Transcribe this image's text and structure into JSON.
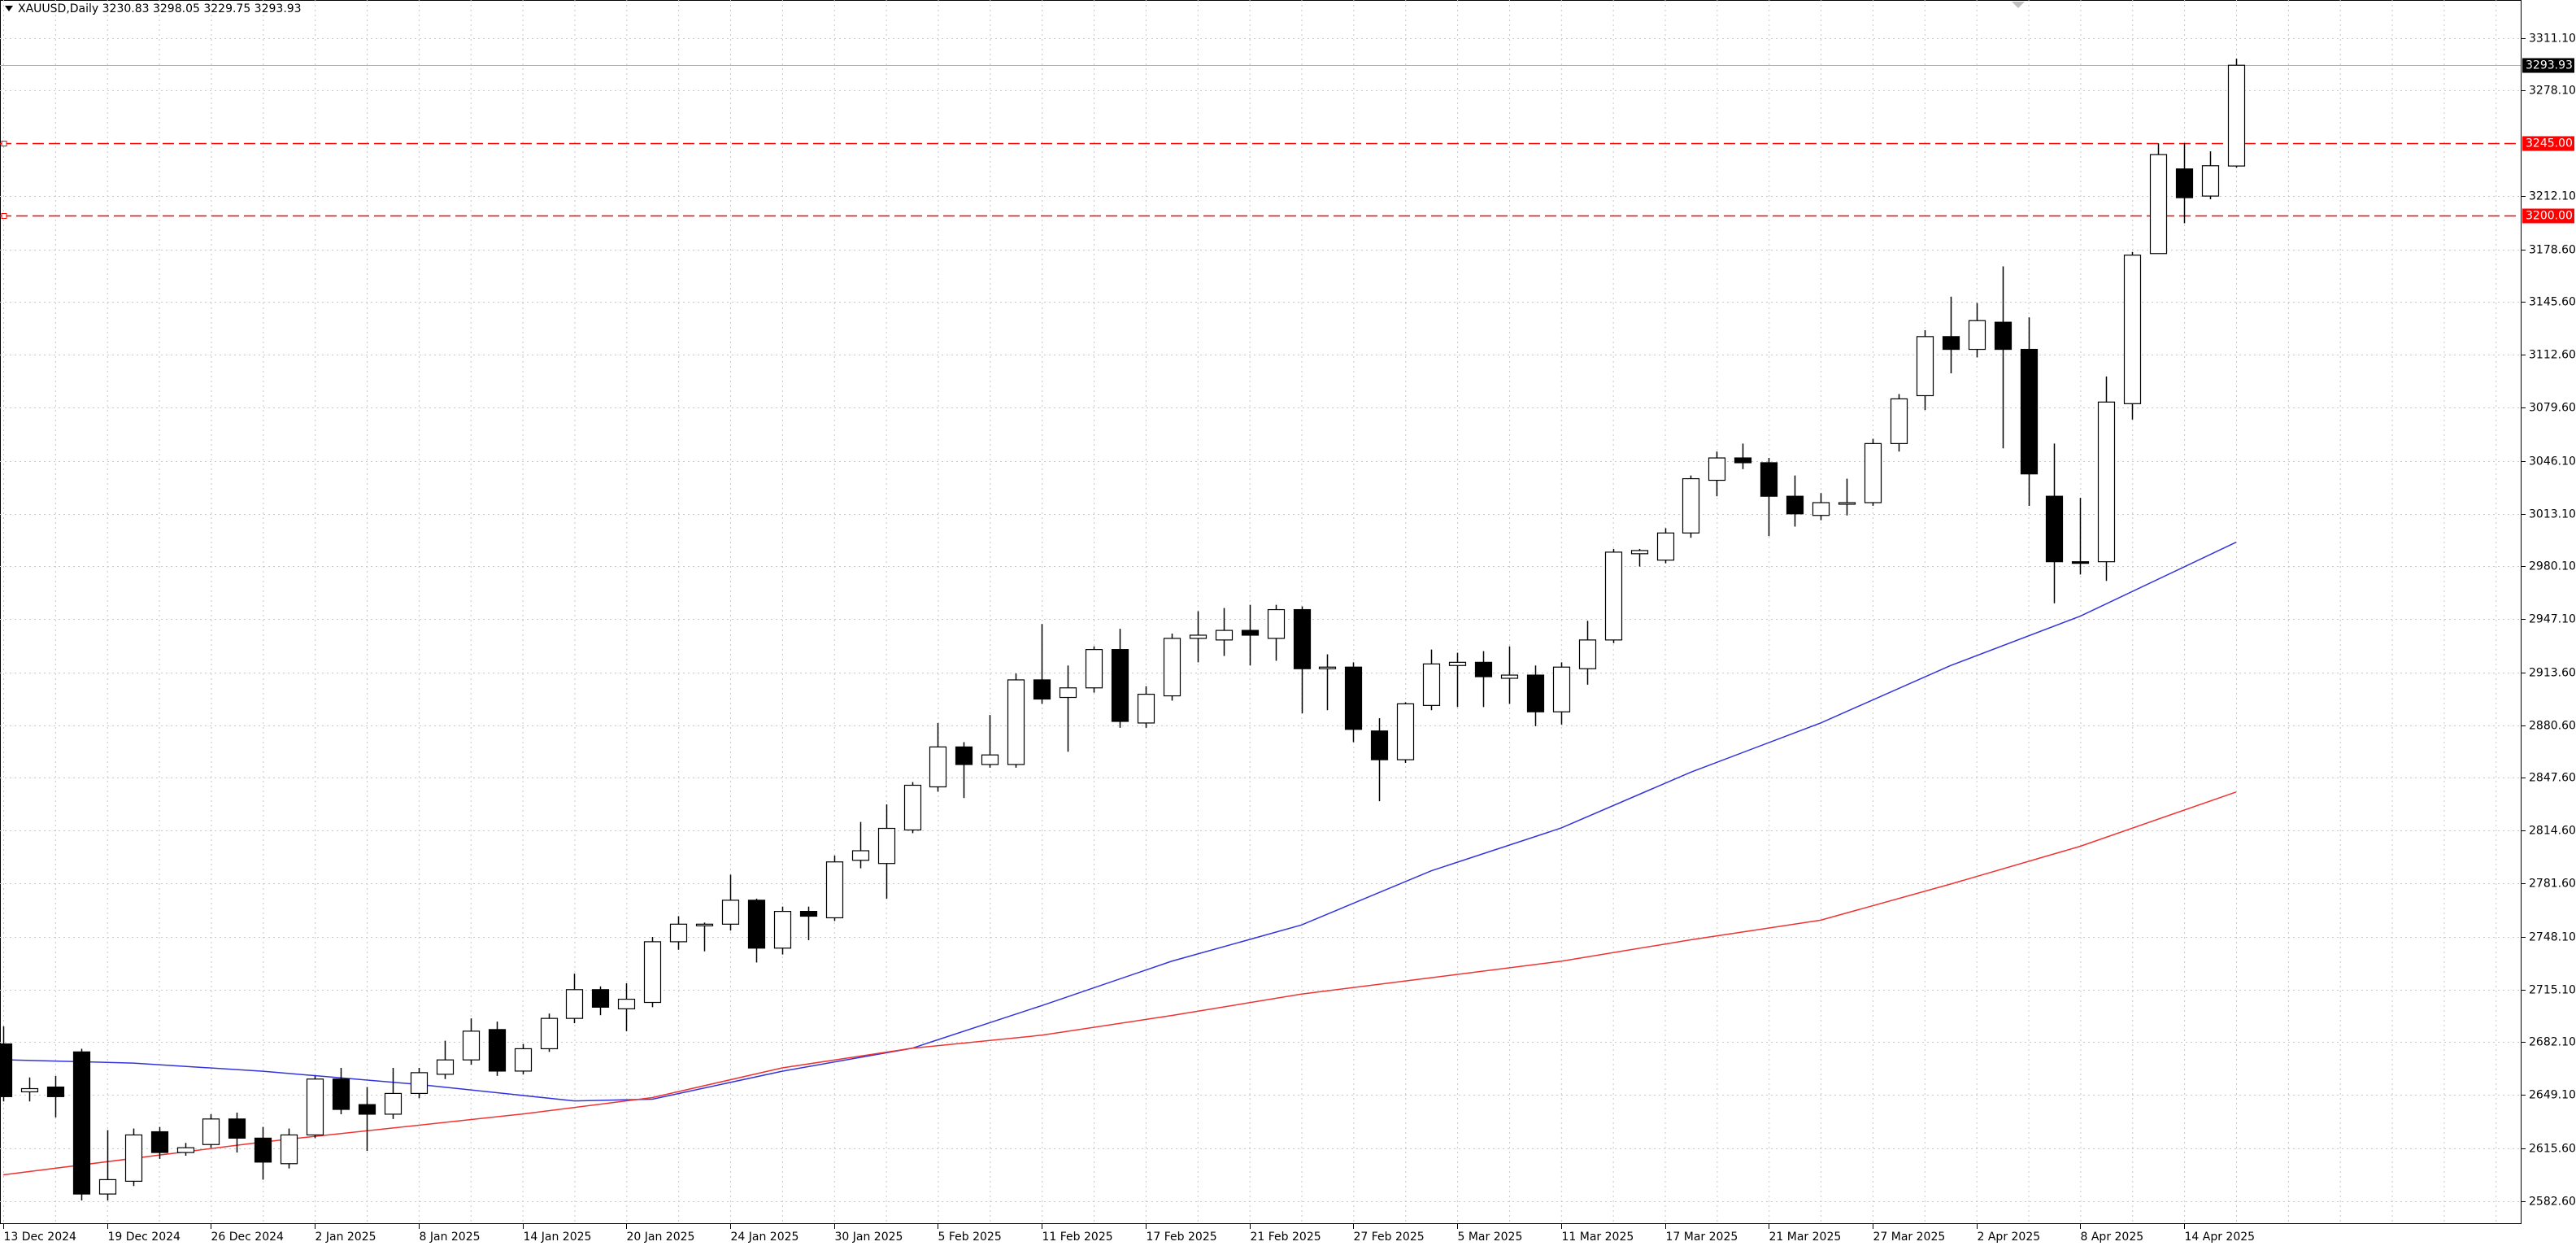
{
  "chart_data": {
    "type": "candlestick",
    "title": "XAUUSD,Daily  3230.83 3298.05 3229.75 3293.93",
    "categories": [
      "13 Dec 2024",
      null,
      null,
      null,
      "19 Dec 2024",
      null,
      null,
      null,
      "26 Dec 2024",
      null,
      null,
      null,
      "2 Jan 2025",
      null,
      null,
      null,
      "8 Jan 2025",
      null,
      null,
      null,
      "14 Jan 2025",
      null,
      null,
      null,
      "20 Jan 2025",
      null,
      null,
      null,
      "24 Jan 2025",
      null,
      null,
      null,
      "30 Jan 2025",
      null,
      null,
      null,
      "5 Feb 2025",
      null,
      null,
      null,
      "11 Feb 2025",
      null,
      null,
      null,
      "17 Feb 2025",
      null,
      null,
      null,
      "21 Feb 2025",
      null,
      null,
      null,
      "27 Feb 2025",
      null,
      null,
      null,
      "5 Mar 2025",
      null,
      null,
      null,
      "11 Mar 2025",
      null,
      null,
      null,
      "17 Mar 2025",
      null,
      null,
      null,
      "21 Mar 2025",
      null,
      null,
      null,
      "27 Mar 2025",
      null,
      null,
      null,
      "2 Apr 2025",
      null,
      null,
      null,
      "8 Apr 2025",
      null,
      null,
      null,
      "14 Apr 2025",
      null,
      null
    ],
    "open": [
      2681,
      2651,
      2654,
      2676,
      2587,
      2595,
      2626,
      2613,
      2618,
      2634,
      2622,
      2606,
      2624,
      2659,
      2643,
      2637,
      2650,
      2662,
      2671,
      2690,
      2664,
      2678,
      2697,
      2715,
      2703,
      2707,
      2745,
      2755,
      2756,
      2771,
      2741,
      2764,
      2760,
      2796,
      2794,
      2815,
      2842,
      2867,
      2856,
      2856,
      2909,
      2898,
      2904,
      2928,
      2882,
      2899,
      2935,
      2934,
      2940,
      2935,
      2953,
      2916,
      2917,
      2877,
      2859,
      2893,
      2918,
      2920,
      2910,
      2912,
      2889,
      2916,
      2934,
      2988,
      2984,
      3001,
      3034,
      3048,
      3045,
      3024,
      3012,
      3019,
      3020,
      3057,
      3087,
      3124,
      3116,
      3133,
      3116,
      3024,
      2983,
      2983,
      3082,
      3176,
      3229,
      3212,
      3230.83
    ],
    "high": [
      2692,
      2660,
      2661,
      2678,
      2627,
      2628,
      2629,
      2619,
      2637,
      2638,
      2629,
      2628,
      2661,
      2666,
      2654,
      2666,
      2666,
      2683,
      2697,
      2695,
      2681,
      2700,
      2725,
      2717,
      2719,
      2748,
      2761,
      2757,
      2787,
      2772,
      2767,
      2767,
      2799,
      2820,
      2831,
      2845,
      2882,
      2870,
      2887,
      2913,
      2944,
      2918,
      2930,
      2941,
      2905,
      2938,
      2952,
      2954,
      2956,
      2956,
      2955,
      2925,
      2920,
      2885,
      2895,
      2928,
      2926,
      2927,
      2930,
      2918,
      2920,
      2946,
      2991,
      2991,
      3004,
      3037,
      3052,
      3057,
      3048,
      3037,
      3026,
      3035,
      3060,
      3088,
      3128,
      3149,
      3145,
      3168,
      3136,
      3057,
      3023,
      3099,
      3177,
      3245,
      3245,
      3240,
      3298.05
    ],
    "low": [
      2645,
      2645,
      2635,
      2583,
      2583,
      2592,
      2609,
      2611,
      2616,
      2613,
      2596,
      2603,
      2622,
      2637,
      2614,
      2634,
      2647,
      2659,
      2668,
      2661,
      2662,
      2676,
      2694,
      2699,
      2689,
      2704,
      2740,
      2739,
      2752,
      2732,
      2737,
      2746,
      2758,
      2791,
      2772,
      2813,
      2839,
      2835,
      2854,
      2854,
      2894,
      2864,
      2901,
      2879,
      2879,
      2896,
      2920,
      2924,
      2918,
      2921,
      2888,
      2890,
      2870,
      2833,
      2857,
      2890,
      2892,
      2892,
      2894,
      2880,
      2881,
      2906,
      2932,
      2980,
      2982,
      2998,
      3024,
      3041,
      2999,
      3005,
      3009,
      3012,
      3018,
      3052,
      3078,
      3101,
      3111,
      3054,
      3018,
      2957,
      2975,
      2971,
      3072,
      3176,
      3195,
      3210,
      3229.75
    ],
    "close": [
      2648,
      2653,
      2648,
      2587,
      2596,
      2624,
      2613,
      2616,
      2634,
      2622,
      2607,
      2624,
      2659,
      2640,
      2637,
      2650,
      2663,
      2671,
      2689,
      2664,
      2678,
      2697,
      2715,
      2704,
      2709,
      2745,
      2756,
      2756,
      2771,
      2741,
      2764,
      2761,
      2795,
      2802,
      2816,
      2843,
      2867,
      2856,
      2862,
      2909,
      2897,
      2904,
      2928,
      2883,
      2900,
      2935,
      2937,
      2940,
      2937,
      2953,
      2916,
      2917,
      2878,
      2859,
      2894,
      2919,
      2920,
      2911,
      2912,
      2889,
      2917,
      2934,
      2989,
      2990,
      3001,
      3035,
      3048,
      3045,
      3024,
      3013,
      3020,
      3020,
      3057,
      3085,
      3124,
      3116,
      3134,
      3116,
      3038,
      2983,
      2982,
      3083,
      3175,
      3238,
      3211,
      3231,
      3293.93
    ],
    "lines": [
      {
        "color": "#3333dd",
        "x": [
          0,
          5,
          10,
          16,
          22,
          25,
          30,
          35,
          40,
          45,
          50,
          55,
          60,
          65,
          70,
          75,
          80,
          86
        ],
        "values": [
          2671.1,
          2669,
          2663.9,
          2655.6,
          2645.3,
          2646.4,
          2663.9,
          2678.3,
          2705,
          2732.8,
          2755.5,
          2789.4,
          2816.2,
          2851.2,
          2882,
          2918,
          2948.9,
          2995.2
        ]
      },
      {
        "color": "#ee3333",
        "x": [
          0,
          10,
          20,
          25,
          30,
          35,
          40,
          45,
          50,
          55,
          60,
          65,
          70,
          75,
          80,
          86
        ],
        "values": [
          2599,
          2619.6,
          2637.1,
          2647.4,
          2666,
          2678.3,
          2686.5,
          2698.8,
          2712.2,
          2722.5,
          2732.8,
          2746.2,
          2758.5,
          2781.1,
          2804.8,
          2838.8
        ]
      }
    ],
    "hlines": [
      {
        "value": 3245,
        "label": "3245.00",
        "color": "#ff0000"
      },
      {
        "value": 3200,
        "label": "3200.00",
        "color": "#ff0000"
      }
    ],
    "last_price": {
      "value": 3293.93,
      "label": "3293.93"
    },
    "ylim": [
      2568.2,
      3334.8
    ],
    "yticks": [
      {
        "value": 3311.1,
        "label": "3311.10"
      },
      {
        "value": 3278.1,
        "label": "3278.10"
      },
      {
        "value": 3212.1,
        "label": "3212.10"
      },
      {
        "value": 3178.6,
        "label": "3178.60"
      },
      {
        "value": 3145.6,
        "label": "3145.60"
      },
      {
        "value": 3112.6,
        "label": "3112.60"
      },
      {
        "value": 3079.6,
        "label": "3079.60"
      },
      {
        "value": 3046.1,
        "label": "3046.10"
      },
      {
        "value": 3013.1,
        "label": "3013.10"
      },
      {
        "value": 2980.1,
        "label": "2980.10"
      },
      {
        "value": 2947.1,
        "label": "2947.10"
      },
      {
        "value": 2913.6,
        "label": "2913.60"
      },
      {
        "value": 2880.6,
        "label": "2880.60"
      },
      {
        "value": 2847.6,
        "label": "2847.60"
      },
      {
        "value": 2814.6,
        "label": "2814.60"
      },
      {
        "value": 2781.6,
        "label": "2781.60"
      },
      {
        "value": 2748.1,
        "label": "2748.10"
      },
      {
        "value": 2715.1,
        "label": "2715.10"
      },
      {
        "value": 2682.1,
        "label": "2682.10"
      },
      {
        "value": 2649.1,
        "label": "2649.10"
      },
      {
        "value": 2615.6,
        "label": "2615.60"
      },
      {
        "value": 2582.6,
        "label": "2582.60"
      }
    ],
    "grid": true
  }
}
